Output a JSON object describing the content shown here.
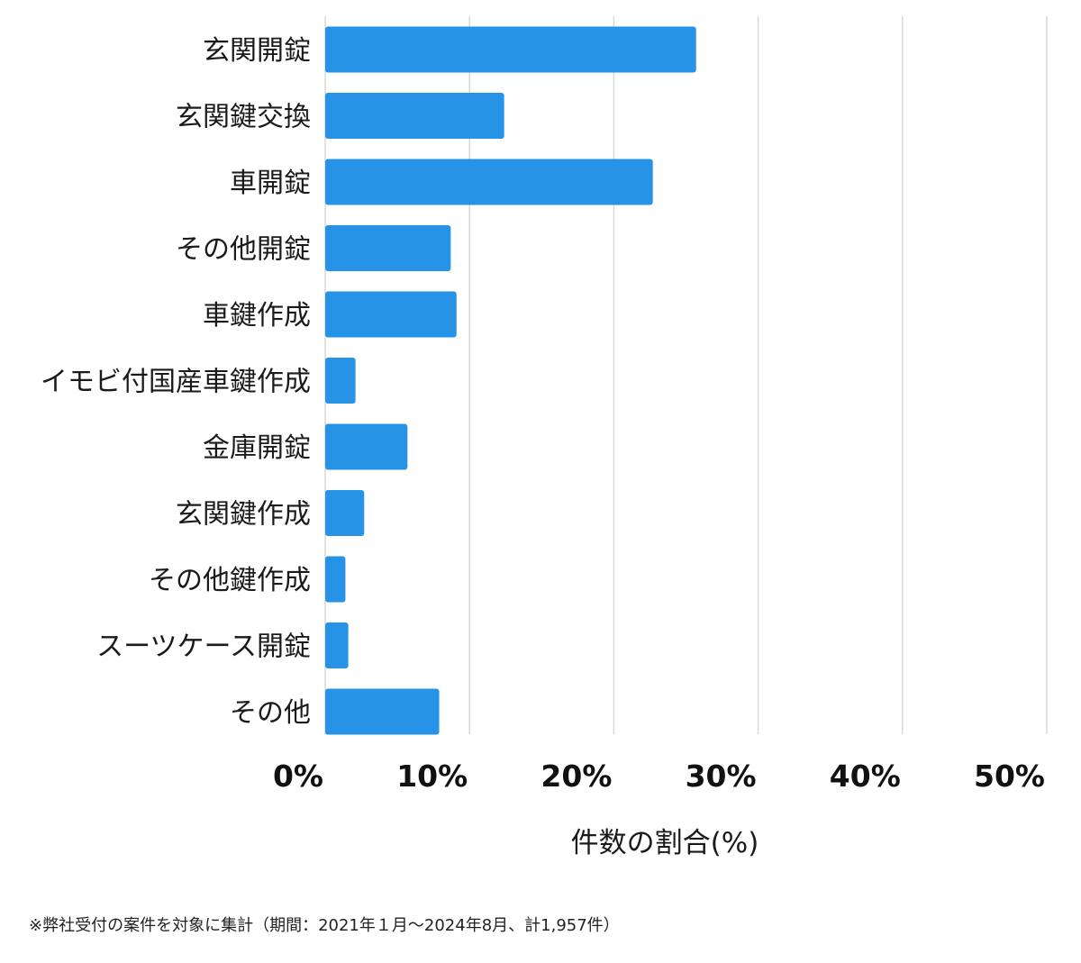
{
  "chart_data": {
    "type": "bar",
    "orientation": "horizontal",
    "categories": [
      "玄関開錠",
      "玄関鍵交換",
      "車開錠",
      "その他開錠",
      "車鍵作成",
      "イモビ付国産車鍵作成",
      "金庫開錠",
      "玄関鍵作成",
      "その他鍵作成",
      "スーツケース開錠",
      "その他"
    ],
    "values": [
      25.7,
      12.4,
      22.7,
      8.7,
      9.1,
      2.1,
      5.7,
      2.7,
      1.4,
      1.6,
      7.9
    ],
    "xlabel": "件数の割合(%)",
    "xlim": [
      0,
      50
    ],
    "xticks": [
      0,
      10,
      20,
      30,
      40,
      50
    ],
    "tick_labels": [
      "0%",
      "10%",
      "20%",
      "30%",
      "40%",
      "50%"
    ],
    "grid": "vertical",
    "bar_color": "#2693e6",
    "grid_color": "#d9d9d9"
  },
  "footnote": "※弊社受付の案件を対象に集計（期間：2021年１月～2024年8月、計1,957件）"
}
